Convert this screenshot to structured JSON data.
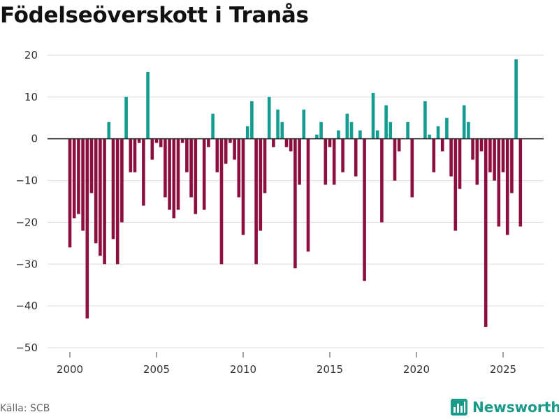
{
  "chart_data": {
    "type": "bar",
    "title": "Födelseöverskott i Tranås",
    "xlabel": "",
    "ylabel": "",
    "ylim": [
      -50,
      20
    ],
    "y_ticks": [
      20,
      10,
      0,
      -10,
      -20,
      -30,
      -40,
      -50
    ],
    "y_tick_labels": [
      "20",
      "10",
      "0",
      "−10",
      "−20",
      "−30",
      "−40",
      "−50"
    ],
    "x_ticks": [
      2000,
      2005,
      2010,
      2015,
      2020,
      2025
    ],
    "x_tick_labels": [
      "2000",
      "2005",
      "2010",
      "2015",
      "2020",
      "2025"
    ],
    "xlim": [
      2000,
      2027
    ],
    "grid": true,
    "colors": {
      "positive": "#149c92",
      "negative": "#8c0f3f",
      "grid": "#dddddd",
      "zero": "#333333"
    },
    "x": [
      2000.0,
      2000.25,
      2000.5,
      2000.75,
      2001.0,
      2001.25,
      2001.5,
      2001.75,
      2002.0,
      2002.25,
      2002.5,
      2002.75,
      2003.0,
      2003.25,
      2003.5,
      2003.75,
      2004.0,
      2004.25,
      2004.5,
      2004.75,
      2005.0,
      2005.25,
      2005.5,
      2005.75,
      2006.0,
      2006.25,
      2006.5,
      2006.75,
      2007.0,
      2007.25,
      2007.5,
      2007.75,
      2008.0,
      2008.25,
      2008.5,
      2008.75,
      2009.0,
      2009.25,
      2009.5,
      2009.75,
      2010.0,
      2010.25,
      2010.5,
      2010.75,
      2011.0,
      2011.25,
      2011.5,
      2011.75,
      2012.0,
      2012.25,
      2012.5,
      2012.75,
      2013.0,
      2013.25,
      2013.5,
      2013.75,
      2014.0,
      2014.25,
      2014.5,
      2014.75,
      2015.0,
      2015.25,
      2015.5,
      2015.75,
      2016.0,
      2016.25,
      2016.5,
      2016.75,
      2017.0,
      2017.25,
      2017.5,
      2017.75,
      2018.0,
      2018.25,
      2018.5,
      2018.75,
      2019.0,
      2019.25,
      2019.5,
      2019.75,
      2020.0,
      2020.25,
      2020.5,
      2020.75,
      2021.0,
      2021.25,
      2021.5,
      2021.75,
      2022.0,
      2022.25,
      2022.5,
      2022.75,
      2023.0,
      2023.25,
      2023.5,
      2023.75,
      2024.0,
      2024.25,
      2024.5,
      2024.75,
      2025.0,
      2025.25,
      2025.5,
      2025.75,
      2026.0
    ],
    "values": [
      -26,
      -19,
      -18,
      -22,
      -43,
      -13,
      -25,
      -28,
      -30,
      4,
      -24,
      -30,
      -20,
      10,
      -8,
      -8,
      -1,
      -16,
      16,
      -5,
      -1,
      -2,
      -14,
      -17,
      -19,
      -17,
      -1,
      -8,
      -14,
      -18,
      0,
      -17,
      -2,
      6,
      -8,
      -30,
      -6,
      -1,
      -5,
      -14,
      -23,
      3,
      9,
      -30,
      -22,
      -13,
      10,
      -2,
      7,
      4,
      -2,
      -3,
      -31,
      -11,
      7,
      -27,
      0,
      1,
      4,
      -11,
      -2,
      -11,
      2,
      -8,
      6,
      4,
      -9,
      2,
      -34,
      0,
      11,
      2,
      -20,
      8,
      4,
      -10,
      -3,
      0,
      4,
      -14,
      0,
      0,
      9,
      1,
      -8,
      3,
      -3,
      5,
      -9,
      -22,
      -12,
      8,
      4,
      -5,
      -11,
      -3,
      -45,
      -8,
      -10,
      -21,
      -8,
      -23,
      -13,
      19,
      -21
    ]
  },
  "footer": {
    "source": "Källa: SCB",
    "brand": "Newsworthy"
  }
}
